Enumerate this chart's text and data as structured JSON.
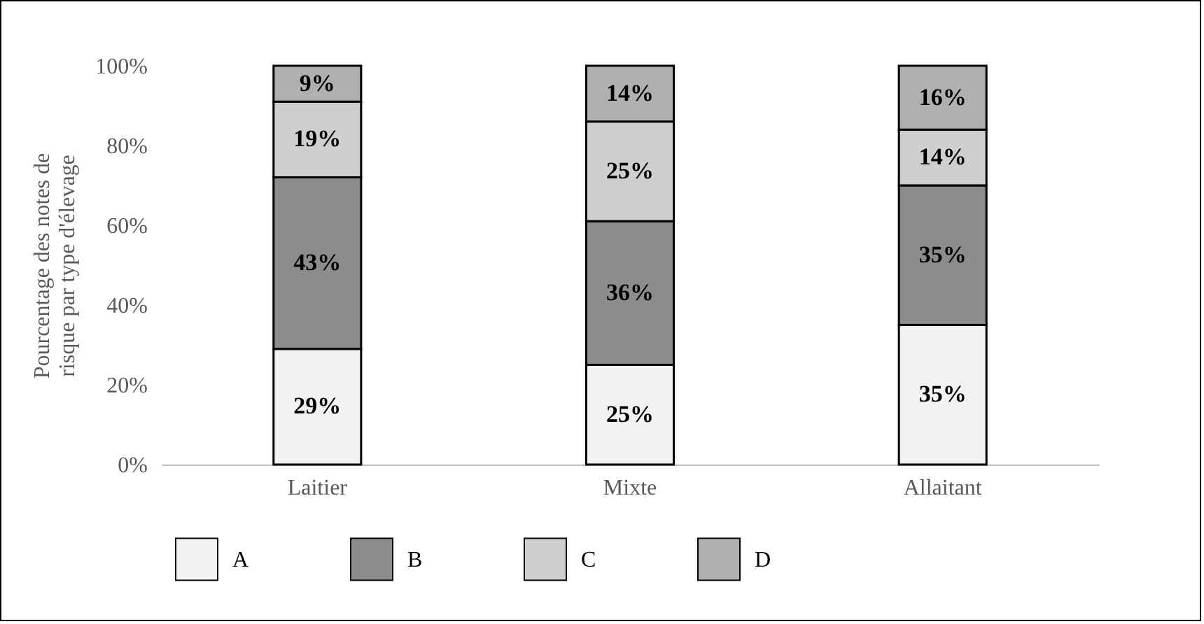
{
  "chart_data": {
    "type": "bar",
    "stacked": true,
    "ylabel": "Pourcentage des notes de risque par type d'élevage",
    "categories": [
      "Laitier",
      "Mixte",
      "Allaitant"
    ],
    "series": [
      {
        "name": "A",
        "color": "#f2f2f2",
        "values": [
          29,
          25,
          35
        ],
        "value_labels": [
          "29%",
          "25%",
          "35%"
        ]
      },
      {
        "name": "B",
        "color": "#8c8c8c",
        "values": [
          43,
          36,
          35
        ],
        "value_labels": [
          "43%",
          "36%",
          "35%"
        ]
      },
      {
        "name": "C",
        "color": "#cfcfcf",
        "values": [
          19,
          25,
          14
        ],
        "value_labels": [
          "19%",
          "25%",
          "14%"
        ]
      },
      {
        "name": "D",
        "color": "#b0b0b0",
        "values": [
          9,
          14,
          16
        ],
        "value_labels": [
          "9%",
          "14%",
          "16%"
        ]
      }
    ],
    "ylim": [
      0,
      100
    ],
    "yticks": [
      {
        "value": 0,
        "label": "0%"
      },
      {
        "value": 20,
        "label": "20%"
      },
      {
        "value": 40,
        "label": "40%"
      },
      {
        "value": 60,
        "label": "60%"
      },
      {
        "value": 80,
        "label": "80%"
      },
      {
        "value": 100,
        "label": "100%"
      }
    ],
    "grid": false,
    "legend": "bottom"
  }
}
